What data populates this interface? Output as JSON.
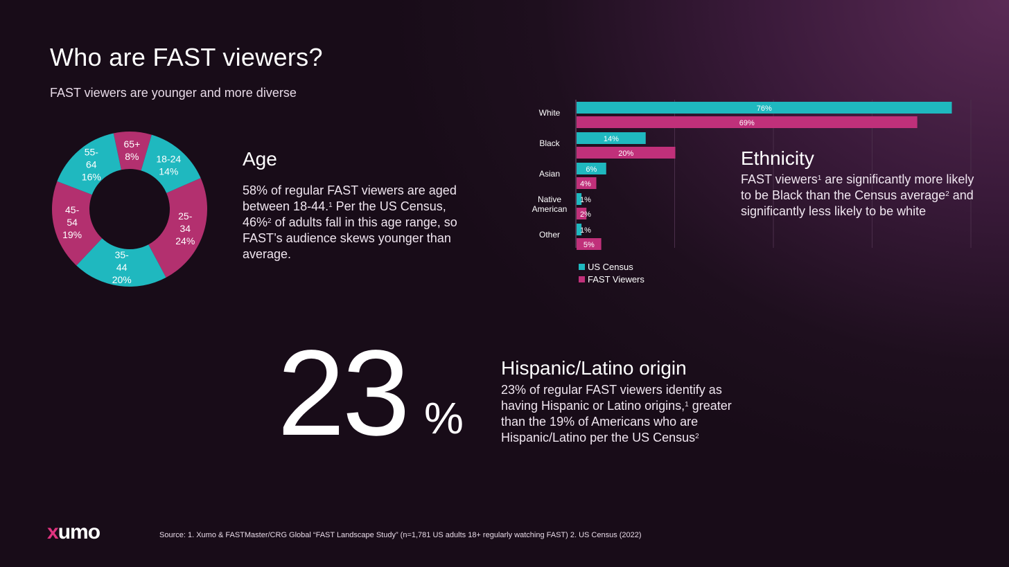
{
  "header": {
    "title": "Who are FAST viewers?",
    "subtitle": "FAST viewers are younger and more diverse"
  },
  "age": {
    "heading": "Age",
    "body_1": "58% of regular FAST viewers are aged between 18-44.",
    "sup_1": "1",
    "body_2": " Per the US Census, 46%",
    "sup_2": "2",
    "body_3": " of adults fall in this age range, so FAST’s audience skews younger than average."
  },
  "ethnicity": {
    "heading": "Ethnicity",
    "body_1": "FAST viewers",
    "sup_1": "1",
    "body_2": " are significantly more likely to be Black than the Census average",
    "sup_2": "2",
    "body_3": " and significantly less likely to be white"
  },
  "hispanic": {
    "big_number": "23",
    "big_pct": "%",
    "heading": "Hispanic/Latino origin",
    "body_1": "23% of regular FAST viewers identify as having Hispanic or Latino origins,",
    "sup_1": "1",
    "body_2": " greater than the 19% of Americans who are Hispanic/Latino per the US Census",
    "sup_2": "2"
  },
  "footer": {
    "logo_x": "x",
    "logo_rest": "umo",
    "source": "Source: 1. Xumo & FASTMaster/CRG Global “FAST Landscape Study” (n=1,781 US adults 18+ regularly watching FAST) 2. US Census (2022)"
  },
  "colors": {
    "teal": "#1fb8bf",
    "magenta": "#b3306f",
    "teal_dark": "#1aa9b0",
    "magenta_bar": "#c0307a"
  },
  "chart_data": [
    {
      "type": "pie",
      "donut": true,
      "slices": [
        {
          "label_lines": [
            "65+"
          ],
          "value": 8,
          "value_label": "8%",
          "color": "#b3306f"
        },
        {
          "label_lines": [
            "18-24"
          ],
          "value": 14,
          "value_label": "14%",
          "color": "#1fb8bf"
        },
        {
          "label_lines": [
            "25-",
            "34"
          ],
          "value": 24,
          "value_label": "24%",
          "color": "#b3306f"
        },
        {
          "label_lines": [
            "35-",
            "44"
          ],
          "value": 20,
          "value_label": "20%",
          "color": "#1fb8bf"
        },
        {
          "label_lines": [
            "45-",
            "54"
          ],
          "value": 19,
          "value_label": "19%",
          "color": "#b3306f"
        },
        {
          "label_lines": [
            "55-",
            "64"
          ],
          "value": 16,
          "value_label": "16%",
          "color": "#1fb8bf"
        }
      ]
    },
    {
      "type": "bar",
      "orientation": "horizontal",
      "categories": [
        [
          "White"
        ],
        [
          "Black"
        ],
        [
          "Asian"
        ],
        [
          "Native",
          "American"
        ],
        [
          "Other"
        ]
      ],
      "series": [
        {
          "name": "US Census",
          "color": "#1fb8bf",
          "values": [
            76,
            14,
            6,
            1,
            1
          ],
          "labels": [
            "76%",
            "14%",
            "6%",
            "1%",
            "1%"
          ]
        },
        {
          "name": "FAST Viewers",
          "color": "#c0307a",
          "values": [
            69,
            20,
            4,
            2,
            5
          ],
          "labels": [
            "69%",
            "20%",
            "4%",
            "2%",
            "5%"
          ]
        }
      ],
      "xlim": [
        0,
        80
      ],
      "grid": true,
      "legend": "bottom-left"
    }
  ]
}
